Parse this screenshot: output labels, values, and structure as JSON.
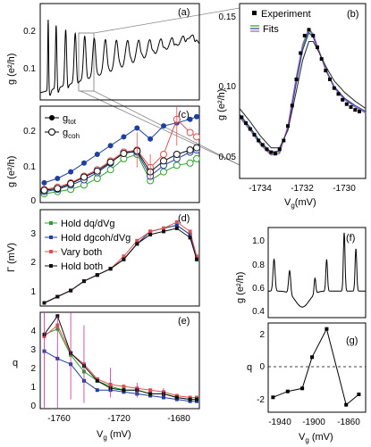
{
  "chart_data": [
    {
      "panel": "(a)",
      "type": "line",
      "ylabel": "g (e²/h)",
      "yticks": [
        0.1,
        0.2
      ],
      "ylim": [
        0.02,
        0.29
      ],
      "xlim": [
        -1800,
        -1650
      ],
      "series": [
        {
          "x": [],
          "y": []
        }
      ]
    },
    {
      "panel": "(b)",
      "type": "scatter+line",
      "ylabel": "g (e²/h)",
      "xlabel": "Vg (mV)",
      "xlim": [
        -1735.5,
        -1729.5
      ],
      "ylim": [
        0.04,
        0.16
      ],
      "xticks": [
        -1734,
        -1732,
        -1730
      ],
      "yticks": [
        0.05,
        0.1,
        0.15
      ],
      "legend": [
        "Experiment",
        "Fits"
      ],
      "legend_position": "top-right",
      "experiment": {
        "x": [
          -1735.4,
          -1735.2,
          -1735.0,
          -1734.8,
          -1734.6,
          -1734.4,
          -1734.2,
          -1734.0,
          -1733.8,
          -1733.6,
          -1733.4,
          -1733.2,
          -1733.0,
          -1732.8,
          -1732.6,
          -1732.4,
          -1732.2,
          -1732.0,
          -1731.8,
          -1731.6,
          -1731.4,
          -1731.2,
          -1731.0,
          -1730.8,
          -1730.6,
          -1730.4,
          -1730.2,
          -1730.0,
          -1729.8
        ],
        "y": [
          0.082,
          0.078,
          0.074,
          0.07,
          0.066,
          0.063,
          0.06,
          0.058,
          0.057,
          0.06,
          0.066,
          0.076,
          0.09,
          0.108,
          0.126,
          0.138,
          0.142,
          0.138,
          0.13,
          0.122,
          0.114,
          0.108,
          0.102,
          0.098,
          0.094,
          0.091,
          0.089,
          0.087,
          0.086
        ]
      },
      "fits": [
        {
          "color": "#2ca02c",
          "x": [
            -1735.5,
            -1735,
            -1734.5,
            -1734,
            -1733.6,
            -1733.2,
            -1732.8,
            -1732.5,
            -1732.2,
            -1732,
            -1731.7,
            -1731.4,
            -1731,
            -1730.5,
            -1730,
            -1729.5
          ],
          "y": [
            0.083,
            0.074,
            0.064,
            0.057,
            0.058,
            0.075,
            0.108,
            0.13,
            0.142,
            0.138,
            0.127,
            0.115,
            0.103,
            0.095,
            0.089,
            0.085
          ]
        },
        {
          "color": "#1f3fa0",
          "x": [
            -1735.5,
            -1735,
            -1734.5,
            -1734,
            -1733.6,
            -1733.2,
            -1732.8,
            -1732.5,
            -1732.2,
            -1732,
            -1731.7,
            -1731.4,
            -1731,
            -1730.5,
            -1730,
            -1729.5
          ],
          "y": [
            0.084,
            0.075,
            0.065,
            0.058,
            0.059,
            0.074,
            0.106,
            0.128,
            0.14,
            0.137,
            0.126,
            0.115,
            0.103,
            0.095,
            0.09,
            0.086
          ]
        },
        {
          "color": "#9b59b6",
          "x": [
            -1735.5,
            -1735,
            -1734.5,
            -1734,
            -1733.6,
            -1733.2,
            -1732.8,
            -1732.5,
            -1732.2,
            -1732,
            -1731.7,
            -1731.4,
            -1731,
            -1730.5,
            -1730,
            -1729.5
          ],
          "y": [
            0.082,
            0.073,
            0.063,
            0.056,
            0.057,
            0.076,
            0.11,
            0.132,
            0.143,
            0.139,
            0.127,
            0.114,
            0.102,
            0.094,
            0.089,
            0.085
          ]
        },
        {
          "color": "#333333",
          "x": [
            -1735.5,
            -1735,
            -1734.5,
            -1734,
            -1733.6,
            -1733.2,
            -1732.8,
            -1732.5,
            -1732.2,
            -1732,
            -1731.7,
            -1731.4,
            -1731,
            -1730.5,
            -1730,
            -1729.5
          ],
          "y": [
            0.088,
            0.079,
            0.069,
            0.061,
            0.061,
            0.073,
            0.1,
            0.121,
            0.134,
            0.134,
            0.126,
            0.117,
            0.107,
            0.099,
            0.093,
            0.088
          ]
        }
      ]
    },
    {
      "panel": "(c)",
      "type": "line",
      "ylabel": "g (e²/h)",
      "xlim": [
        -1780,
        -1660
      ],
      "ylim": [
        0,
        0.22
      ],
      "yticks": [
        0,
        0.1,
        0.2
      ],
      "legend": [
        "g_tot",
        "g_coh"
      ],
      "x": [
        -1777,
        -1767,
        -1757,
        -1747,
        -1737,
        -1727,
        -1717,
        -1707,
        -1697,
        -1687,
        -1677,
        -1667,
        -1662
      ],
      "series": [
        {
          "marker": "filled",
          "color": "#1f3fa0",
          "y": [
            0.045,
            0.055,
            0.07,
            0.09,
            0.11,
            0.13,
            0.15,
            0.17,
            0.145,
            0.175,
            0.182,
            0.19,
            0.196
          ]
        },
        {
          "marker": "open",
          "color": "#2ca02c",
          "y": [
            0.02,
            0.025,
            0.03,
            0.04,
            0.055,
            0.075,
            0.1,
            0.11,
            0.05,
            0.07,
            0.085,
            0.09,
            0.1
          ]
        },
        {
          "marker": "open",
          "color": "#1f3fa0",
          "y": [
            0.025,
            0.03,
            0.04,
            0.052,
            0.068,
            0.09,
            0.115,
            0.115,
            0.06,
            0.085,
            0.1,
            0.115,
            0.12
          ]
        },
        {
          "marker": "open",
          "color": "#e05050",
          "y": [
            0.03,
            0.035,
            0.045,
            0.06,
            0.075,
            0.095,
            0.115,
            0.12,
            0.08,
            0.11,
            0.19,
            0.16,
            0.15
          ]
        },
        {
          "marker": "open",
          "color": "#111111",
          "y": [
            0.028,
            0.032,
            0.043,
            0.058,
            0.072,
            0.092,
            0.112,
            0.118,
            0.07,
            0.095,
            0.11,
            0.12,
            0.125
          ]
        }
      ]
    },
    {
      "panel": "(d)",
      "type": "line",
      "ylabel": "Γ (mV)",
      "xlim": [
        -1780,
        -1660
      ],
      "ylim": [
        0.5,
        3.6
      ],
      "yticks": [
        1,
        2,
        3
      ],
      "legend": [
        "Hold dq/dVg",
        "Hold dgcoh/dVg",
        "Vary both",
        "Hold both"
      ],
      "x": [
        -1777,
        -1767,
        -1757,
        -1747,
        -1737,
        -1727,
        -1717,
        -1707,
        -1697,
        -1687,
        -1677,
        -1667,
        -1662
      ],
      "series": [
        {
          "name": "Hold dq/dVg",
          "color": "#2ca02c",
          "y": [
            0.6,
            0.8,
            1.0,
            1.3,
            1.5,
            1.7,
            2.0,
            2.5,
            2.9,
            3.0,
            3.1,
            2.8,
            2.0
          ]
        },
        {
          "name": "Hold dgcoh/dVg",
          "color": "#1f3fa0",
          "y": [
            0.6,
            0.8,
            1.0,
            1.3,
            1.5,
            1.7,
            2.0,
            2.5,
            2.9,
            3.0,
            3.1,
            2.8,
            2.0
          ]
        },
        {
          "name": "Vary both",
          "color": "#e05050",
          "y": [
            0.6,
            0.8,
            1.0,
            1.3,
            1.5,
            1.7,
            2.1,
            2.6,
            2.9,
            3.0,
            3.2,
            2.9,
            2.1
          ]
        },
        {
          "name": "Hold both",
          "color": "#111111",
          "y": [
            0.6,
            0.8,
            1.0,
            1.3,
            1.5,
            1.7,
            2.0,
            2.5,
            2.8,
            2.9,
            3.0,
            2.7,
            2.0
          ]
        }
      ]
    },
    {
      "panel": "(e)",
      "type": "line",
      "ylabel": "q",
      "xlabel": "Vg (mV)",
      "xlim": [
        -1780,
        -1660
      ],
      "ylim": [
        0,
        5.2
      ],
      "yticks": [
        0,
        1,
        2,
        3,
        4
      ],
      "xticks": [
        -1760,
        -1720,
        -1680
      ],
      "x": [
        -1777,
        -1767,
        -1757,
        -1747,
        -1737,
        -1727,
        -1717,
        -1707,
        -1697,
        -1687,
        -1677,
        -1667,
        -1662
      ],
      "series": [
        {
          "color": "#2ca02c",
          "y": [
            4.0,
            4.3,
            2.9,
            2.0,
            1.5,
            1.2,
            1.0,
            1.0,
            0.8,
            0.8,
            0.6,
            0.5,
            0.5
          ]
        },
        {
          "color": "#1f3fa0",
          "y": [
            3.1,
            2.7,
            2.4,
            1.5,
            1.0,
            1.0,
            0.9,
            0.8,
            0.7,
            0.6,
            0.5,
            0.4,
            0.4
          ]
        },
        {
          "color": "#e05050",
          "y": [
            3.9,
            4.5,
            3.0,
            2.4,
            1.6,
            1.3,
            1.2,
            1.1,
            1.0,
            0.9,
            0.7,
            0.6,
            0.6
          ]
        },
        {
          "color": "#111111",
          "y": [
            4.0,
            5.0,
            3.0,
            2.3,
            1.5,
            1.1,
            1.0,
            1.0,
            0.8,
            0.8,
            0.6,
            0.5,
            0.5
          ]
        }
      ]
    },
    {
      "panel": "(f)",
      "type": "line",
      "ylabel": "g (e²/h)",
      "xlim": [
        -1945,
        -1845
      ],
      "ylim": [
        0.3,
        1.15
      ],
      "yticks": [
        0.4,
        0.6,
        0.8,
        1.0
      ],
      "series": [
        {
          "x": [],
          "y": []
        }
      ]
    },
    {
      "panel": "(g)",
      "type": "line",
      "ylabel": "q",
      "xlabel": "Vg (mV)",
      "xlim": [
        -1945,
        -1845
      ],
      "ylim": [
        -2.9,
        3.1
      ],
      "yticks": [
        -2,
        0,
        2
      ],
      "xticks": [
        -1940,
        -1900,
        -1860
      ],
      "x": [
        -1940,
        -1925,
        -1910,
        -1900,
        -1885,
        -1865,
        -1852
      ],
      "y": [
        -1.9,
        -1.5,
        -1.3,
        0.8,
        2.7,
        -2.4,
        -1.7
      ]
    }
  ]
}
